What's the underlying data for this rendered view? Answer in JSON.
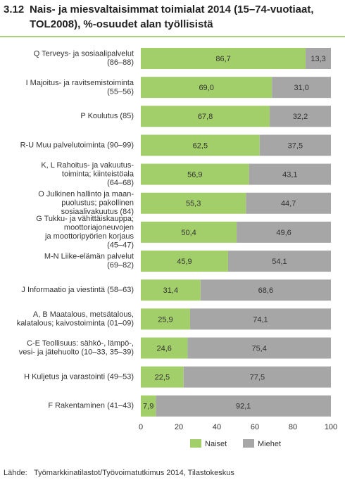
{
  "chart_data": {
    "type": "stacked-barh",
    "number": "3.12",
    "title": [
      "Nais- ja miesvaltaisimmat toimialat 2014 (15–74-vuotiaat,",
      "TOL2008), %-osuudet alan työllisistä"
    ],
    "categories": [
      [
        "Q  Terveys- ja sosiaalipalvelut",
        "(86–88)"
      ],
      [
        "I  Majoitus- ja ravitsemistoiminta",
        "(55–56)"
      ],
      [
        "P  Koulutus (85)"
      ],
      [
        "R-U Muu palvelutoiminta (90–99)"
      ],
      [
        "K, L  Rahoitus- ja vakuutus-",
        "toiminta;  kiinteistöala",
        "(64–68)"
      ],
      [
        "O  Julkinen hallinto ja maan-",
        "puolustus; pakollinen",
        "sosiaalivakuutus (84)"
      ],
      [
        "G  Tukku- ja vähittäiskauppa;",
        "moottoriajoneuvojen",
        "ja moottoripyörien korjaus",
        "(45–47)"
      ],
      [
        "M-N Liike-elämän palvelut",
        "(69–82)"
      ],
      [
        "J  Informaatio ja viestintä (58–63)"
      ],
      [
        "A, B  Maatalous, metsätalous,",
        "kalatalous; kaivostoiminta (01–09)"
      ],
      [
        "C-E Teollisuus: sähkö-, lämpö-,",
        "vesi- ja jätehuolto (10–33, 35–39)"
      ],
      [
        "H  Kuljetus ja varastointi (49–53)"
      ],
      [
        "F  Rakentaminen (41–43)"
      ]
    ],
    "series": [
      {
        "name": "Naiset",
        "color": "#a3cf6b",
        "values": [
          86.7,
          69.0,
          67.8,
          62.5,
          56.9,
          55.3,
          50.4,
          45.9,
          31.4,
          25.9,
          24.6,
          22.5,
          7.9
        ],
        "value_labels": [
          "86,7",
          "69,0",
          "67,8",
          "62,5",
          "56,9",
          "55,3",
          "50,4",
          "45,9",
          "31,4",
          "25,9",
          "24,6",
          "22,5",
          "7,9"
        ]
      },
      {
        "name": "Miehet",
        "color": "#a6a6a6",
        "values": [
          13.3,
          31.0,
          32.2,
          37.5,
          43.1,
          44.7,
          49.6,
          54.1,
          68.6,
          74.1,
          75.4,
          77.5,
          92.1
        ],
        "value_labels": [
          "13,3",
          "31,0",
          "32,2",
          "37,5",
          "43,1",
          "44,7",
          "49,6",
          "54,1",
          "68,6",
          "74,1",
          "75,4",
          "77,5",
          "92,1"
        ]
      }
    ],
    "xlim": [
      0,
      100
    ],
    "xticks": [
      0,
      20,
      40,
      60,
      80,
      100
    ],
    "grid": false,
    "source_label": "Lähde:",
    "source": "Työmarkkinatilastot/Työvoimatutkimus 2014, Tilastokeskus"
  }
}
